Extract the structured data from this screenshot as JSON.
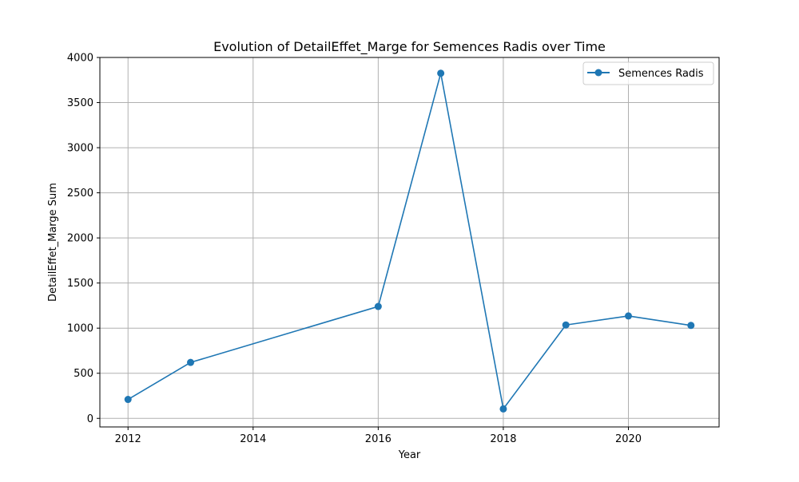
{
  "chart_data": {
    "type": "line",
    "title": "Evolution of DetailEffet_Marge for Semences Radis over Time",
    "xlabel": "Year",
    "ylabel": "DetailEffet_Marge Sum",
    "xlim": [
      2011.55,
      2021.45
    ],
    "ylim": [
      -95,
      4000
    ],
    "x_ticks": [
      2012,
      2014,
      2016,
      2018,
      2020
    ],
    "y_ticks": [
      0,
      500,
      1000,
      1500,
      2000,
      2500,
      3000,
      3500,
      4000
    ],
    "grid": true,
    "legend_position": "upper right",
    "series": [
      {
        "name": "Semences Radis",
        "color": "#1f77b4",
        "marker": "circle",
        "x": [
          2012,
          2013,
          2016,
          2017,
          2018,
          2019,
          2020,
          2021
        ],
        "y": [
          210,
          620,
          1240,
          3825,
          105,
          1035,
          1135,
          1030
        ]
      }
    ]
  }
}
